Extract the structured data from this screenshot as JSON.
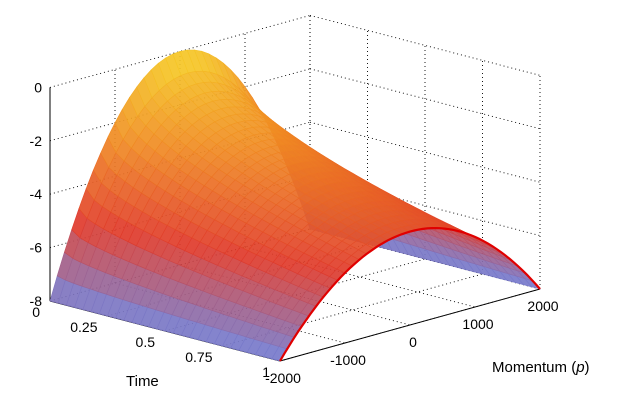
{
  "chart_data": {
    "type": "surface",
    "title": "",
    "zlabel": "",
    "xlabel": "Time",
    "ylabel_text": "Momentum (",
    "ylabel_var": "p",
    "ylabel_close": ")",
    "zlim": [
      -8,
      0
    ],
    "time_range": [
      0,
      1
    ],
    "momentum_range": [
      -2000,
      2000
    ],
    "z_ticks": [
      "0",
      "-2",
      "-4",
      "-6",
      "-8"
    ],
    "z_tick_values": [
      0,
      -2,
      -4,
      -6,
      -8
    ],
    "time_ticks": [
      "0",
      "0.25",
      "0.5",
      "0.75",
      "1"
    ],
    "time_tick_values": [
      0,
      0.25,
      0.5,
      0.75,
      1
    ],
    "momentum_ticks": [
      "-2000",
      "-1000",
      "0",
      "1000",
      "2000"
    ],
    "momentum_tick_values": [
      -2000,
      -1000,
      0,
      1000,
      2000
    ],
    "grid": true,
    "surface_description": {
      "peak_value_at_t0_p0": 0,
      "value_at_t1_p0": -4.5,
      "edge_value_at_p_pm2000": -8,
      "shape": "parabolic in momentum, decreasing with time"
    },
    "colormap": [
      "#6f7fd8",
      "#e03a2a",
      "#f08a23",
      "#f6d327"
    ],
    "edge_curve_color": "#e00000"
  }
}
